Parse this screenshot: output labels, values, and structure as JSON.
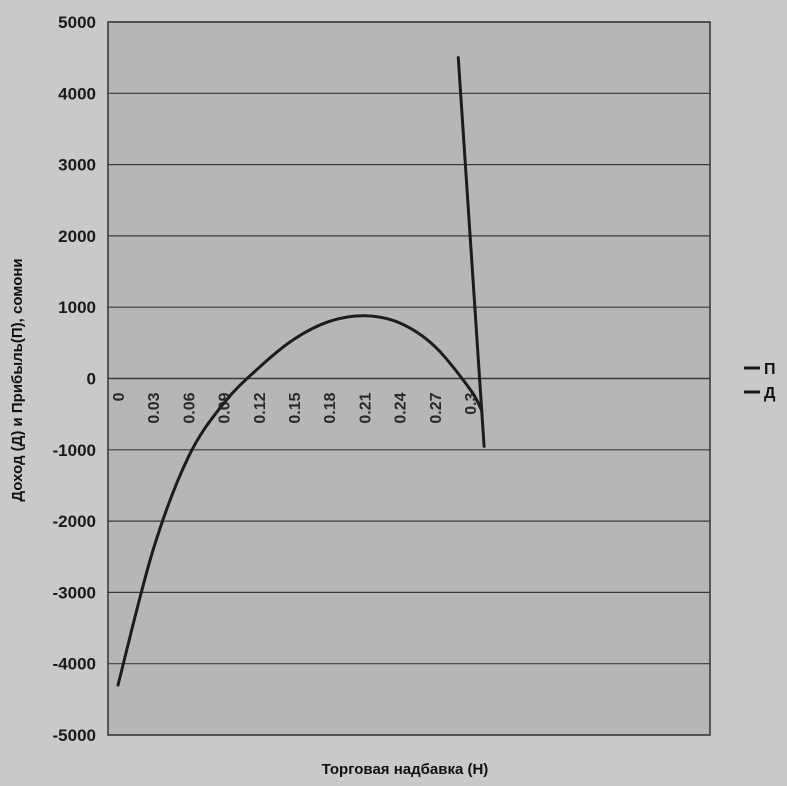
{
  "chart_data": {
    "type": "line",
    "title": "",
    "xlabel": "Торговая надбавка (Н)",
    "ylabel": "Доход (Д) и Прибыль(П), сомони",
    "ylim": [
      -5000,
      5000
    ],
    "yticks": [
      5000,
      4000,
      3000,
      2000,
      1000,
      0,
      -1000,
      -2000,
      -3000,
      -4000,
      -5000
    ],
    "categories": [
      "0",
      "0.03",
      "0.06",
      "0.09",
      "0.12",
      "0.15",
      "0.18",
      "0.21",
      "0.24",
      "0.27",
      "0.3"
    ],
    "grid": true,
    "legend_position": "right",
    "series": [
      {
        "name": "П",
        "x": [
          0,
          0.03,
          0.06,
          0.09,
          0.12,
          0.15,
          0.18,
          0.21,
          0.24,
          0.27,
          0.3,
          0.31
        ],
        "values": [
          -4300,
          -2400,
          -1100,
          -350,
          150,
          550,
          800,
          880,
          780,
          450,
          -150,
          -450
        ],
        "color": "#1c1c1c"
      },
      {
        "name": "Д",
        "x": [
          0.29,
          0.312
        ],
        "values": [
          4500,
          -950
        ],
        "color": "#1c1c1c"
      }
    ]
  }
}
